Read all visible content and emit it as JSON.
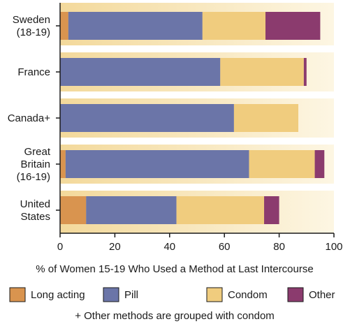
{
  "chart_data": {
    "type": "bar",
    "orientation": "horizontal",
    "stacked": true,
    "categories": [
      [
        "Sweden",
        "(18-19)"
      ],
      [
        "France"
      ],
      [
        "Canada+"
      ],
      [
        "Great",
        "Britain",
        "(16-19)"
      ],
      [
        "United",
        "States"
      ]
    ],
    "series": [
      {
        "name": "Long acting",
        "color": "#d9944f",
        "values": [
          3,
          0,
          0,
          2,
          9.5
        ]
      },
      {
        "name": "Pill",
        "color": "#6b75a8",
        "values": [
          49,
          58.5,
          63.5,
          67,
          33
        ]
      },
      {
        "name": "Condom",
        "color": "#f0cc7e",
        "values": [
          23,
          30.5,
          23.5,
          24,
          32
        ]
      },
      {
        "name": "Other",
        "color": "#8b3b6e",
        "values": [
          20,
          1,
          0,
          3.5,
          5.5
        ]
      }
    ],
    "xlabel": "% of Women 15-19 Who Used a Method at Last Intercourse",
    "xlim": [
      0,
      100
    ],
    "xticks": [
      0,
      20,
      40,
      60,
      80,
      100
    ],
    "footnote": "+ Other methods are grouped with condom",
    "background_gradient": [
      "#f3d99b",
      "#fdf6e3"
    ],
    "legend_position": "bottom"
  }
}
